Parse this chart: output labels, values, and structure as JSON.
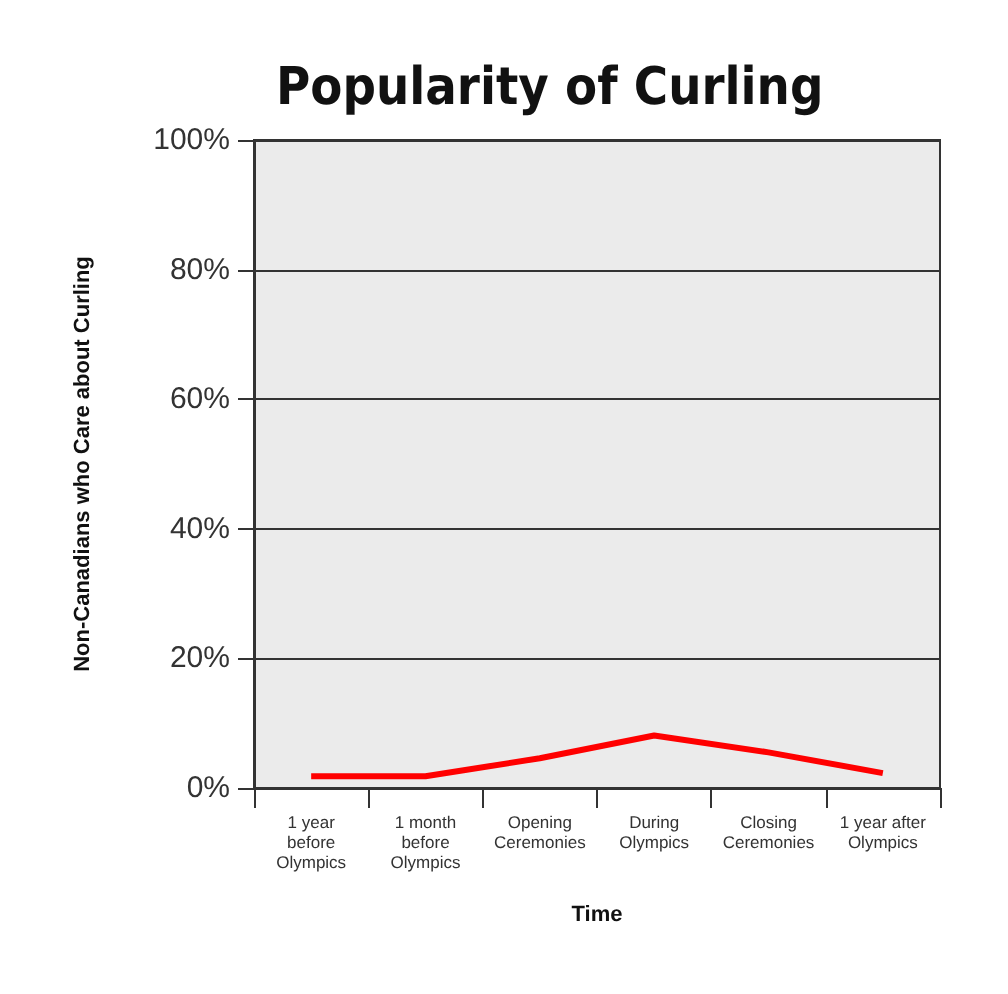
{
  "chart_data": {
    "type": "line",
    "title": "Popularity of Curling",
    "xlabel": "Time",
    "ylabel": "Non-Canadians who Care about Curling",
    "categories": [
      "1 year\nbefore\nOlympics",
      "1 month\nbefore\nOlympics",
      "Opening\nCeremonies",
      "During\nOlympics",
      "Closing\nCeremonies",
      "1 year after\nOlympics"
    ],
    "series": [
      {
        "color": "#ff0000",
        "values": [
          1.8,
          1.8,
          4.6,
          8.1,
          5.5,
          2.3
        ]
      }
    ],
    "ylim": [
      0,
      100
    ],
    "yticks": [
      {
        "value": 0,
        "label": "0%"
      },
      {
        "value": 20,
        "label": "20%"
      },
      {
        "value": 40,
        "label": "40%"
      },
      {
        "value": 60,
        "label": "60%"
      },
      {
        "value": 80,
        "label": "80%"
      },
      {
        "value": 100,
        "label": "100%"
      }
    ],
    "grid": "y",
    "marker": "none",
    "line_style": "solid"
  }
}
